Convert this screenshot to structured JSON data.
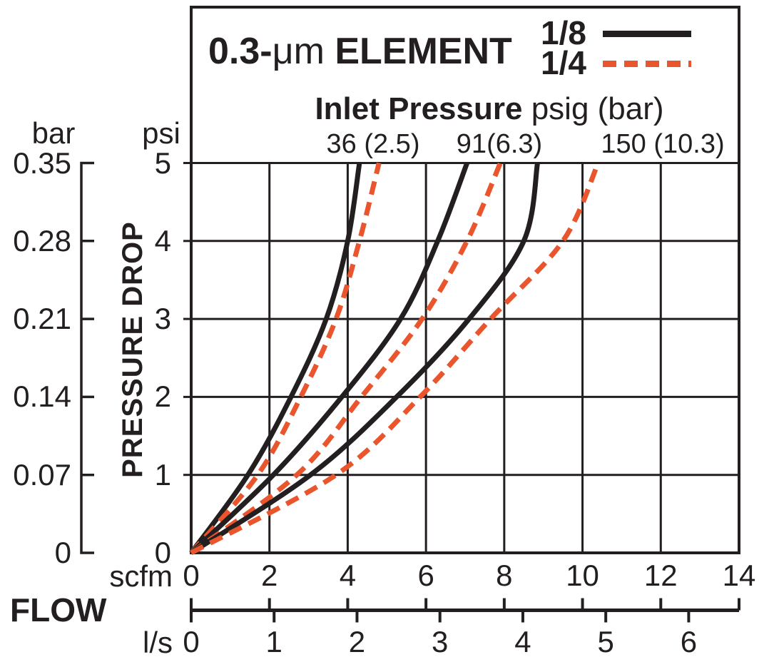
{
  "title": {
    "bold_prefix": "0.3-",
    "unit": "μm",
    "bold_suffix": " ELEMENT"
  },
  "legend": {
    "items": [
      {
        "label": "1/8",
        "style": "solid",
        "color": "#231f20"
      },
      {
        "label": "1/4",
        "style": "dashed",
        "color": "#e9562d"
      }
    ]
  },
  "inlet_pressure": {
    "label_bold": "Inlet Pressure",
    "label_rest": " psig (bar)",
    "values": [
      "36 (2.5)",
      "91(6.3)",
      "150 (10.3)"
    ]
  },
  "y_axis": {
    "label": "PRESSURE DROP",
    "units_left": {
      "name": "bar",
      "ticks": [
        "0.35",
        "0.28",
        "0.21",
        "0.14",
        "0.07",
        "0"
      ]
    },
    "units_right": {
      "name": "psi",
      "ticks": [
        "5",
        "4",
        "3",
        "2",
        "1",
        "0"
      ]
    }
  },
  "x_axis": {
    "label": "FLOW",
    "units_top": {
      "name": "scfm",
      "ticks": [
        "0",
        "2",
        "4",
        "6",
        "8",
        "10",
        "12",
        "14"
      ]
    },
    "units_bottom": {
      "name": "l/s",
      "ticks": [
        "0",
        "1",
        "2",
        "3",
        "4",
        "5",
        "6"
      ]
    }
  },
  "colors": {
    "line": "#231f20",
    "accent": "#e9562d",
    "background": "#ffffff"
  },
  "chart_data": {
    "type": "line",
    "title": "0.3-μm ELEMENT",
    "xlabel": "FLOW",
    "ylabel": "PRESSURE DROP",
    "x_units": [
      "scfm",
      "l/s"
    ],
    "y_units": [
      "psi",
      "bar"
    ],
    "x_range_scfm": [
      0,
      14
    ],
    "y_range_psi": [
      0,
      5
    ],
    "scfm_per_ls": 2.1189,
    "bar_per_psi": 0.069,
    "grid": true,
    "legend_position": "top-right",
    "series": [
      {
        "name": "1/8 @ 36 psig (2.5 bar)",
        "size": "1/8",
        "inlet_psig": 36,
        "inlet_bar": 2.5,
        "style": "solid",
        "color": "#231f20",
        "psi": [
          0,
          1,
          2,
          3,
          4,
          5
        ],
        "scfm": [
          0,
          1.45,
          2.55,
          3.45,
          4.0,
          4.3
        ]
      },
      {
        "name": "1/4 @ 36 psig (2.5 bar)",
        "size": "1/4",
        "inlet_psig": 36,
        "inlet_bar": 2.5,
        "style": "dashed",
        "color": "#e9562d",
        "psi": [
          0,
          1,
          2,
          3,
          4,
          5
        ],
        "scfm": [
          0,
          1.7,
          2.8,
          3.7,
          4.3,
          4.8
        ]
      },
      {
        "name": "1/8 @ 91 psig (6.3 bar)",
        "size": "1/8",
        "inlet_psig": 91,
        "inlet_bar": 6.3,
        "style": "solid",
        "color": "#231f20",
        "psi": [
          0,
          1,
          2,
          3,
          4,
          5
        ],
        "scfm": [
          0,
          2.1,
          3.85,
          5.35,
          6.3,
          7.05
        ]
      },
      {
        "name": "1/4 @ 91 psig (6.3 bar)",
        "size": "1/4",
        "inlet_psig": 91,
        "inlet_bar": 6.3,
        "style": "dashed",
        "color": "#e9562d",
        "psi": [
          0,
          1,
          2,
          3,
          4,
          5
        ],
        "scfm": [
          0,
          2.7,
          4.35,
          5.9,
          7.05,
          7.9
        ]
      },
      {
        "name": "1/8 @ 150 psig (10.3 bar)",
        "size": "1/8",
        "inlet_psig": 150,
        "inlet_bar": 10.3,
        "style": "solid",
        "color": "#231f20",
        "psi": [
          0,
          1,
          2,
          3,
          4,
          5
        ],
        "scfm": [
          0,
          3.05,
          5.25,
          7.1,
          8.5,
          8.85
        ]
      },
      {
        "name": "1/4 @ 150 psig (10.3 bar)",
        "size": "1/4",
        "inlet_psig": 150,
        "inlet_bar": 10.3,
        "style": "dashed",
        "color": "#e9562d",
        "psi": [
          0,
          1,
          2,
          3,
          4,
          5
        ],
        "scfm": [
          0,
          3.7,
          5.85,
          7.65,
          9.5,
          10.4
        ]
      }
    ]
  }
}
